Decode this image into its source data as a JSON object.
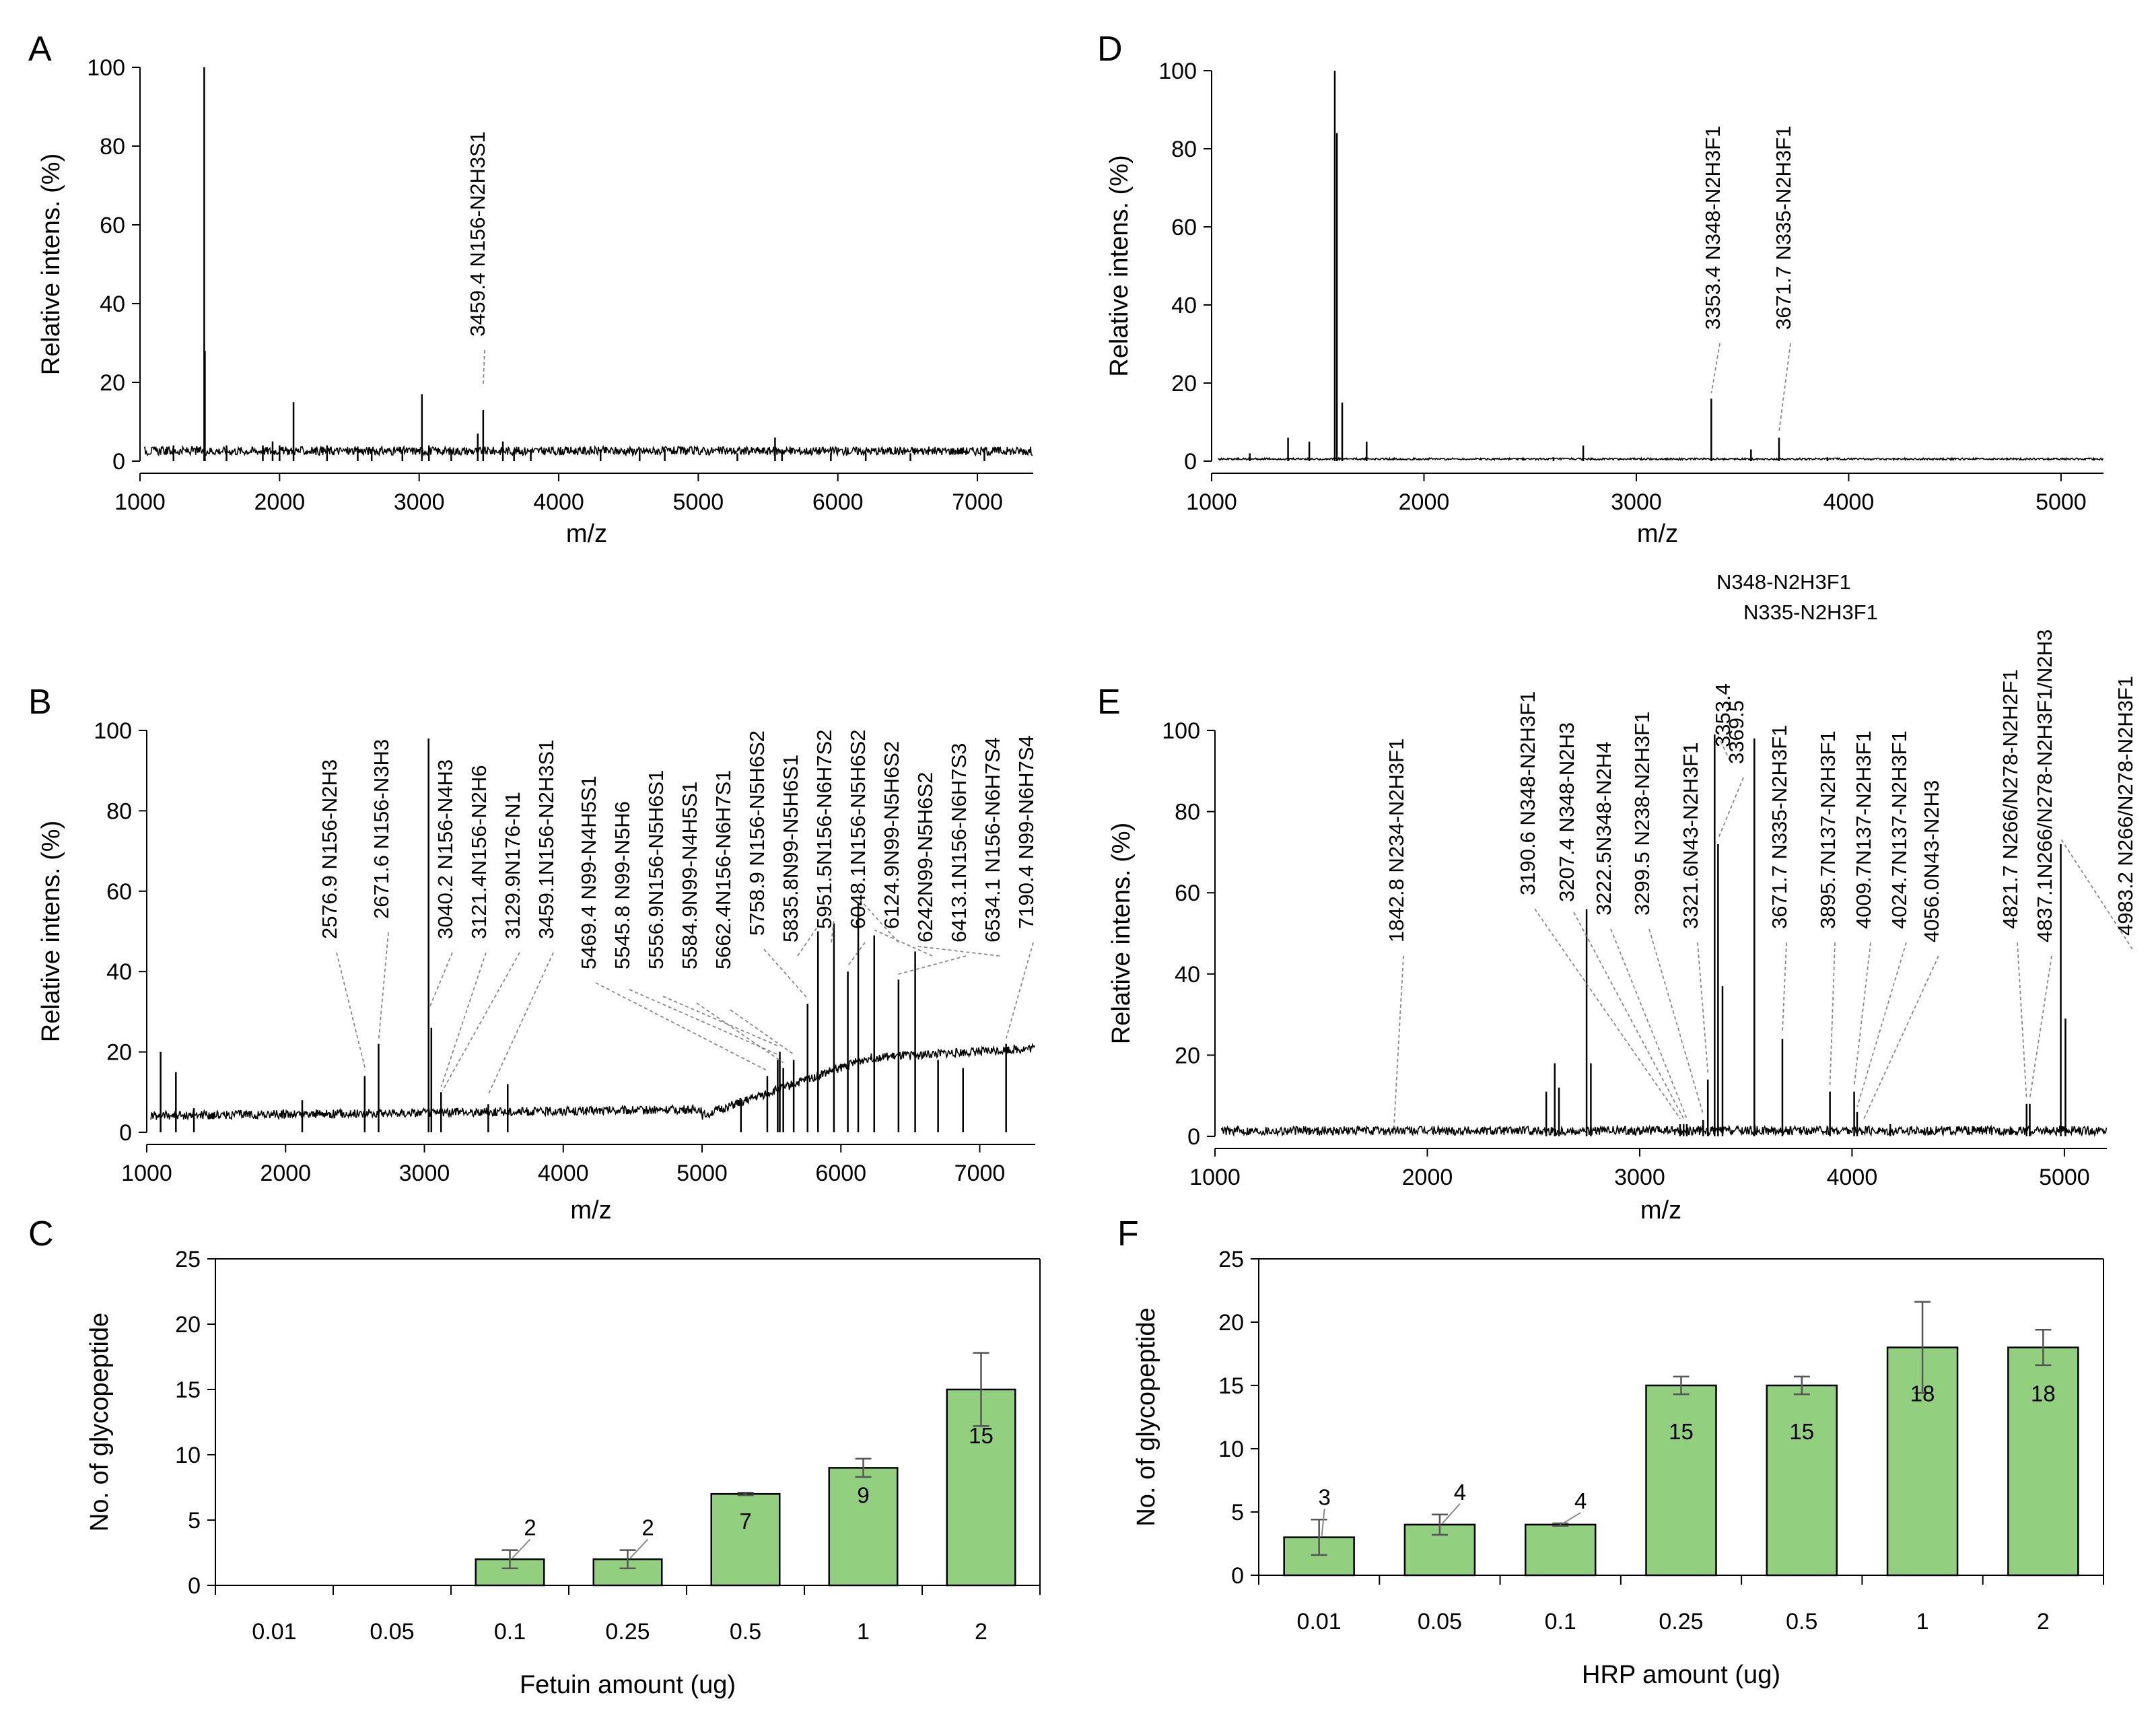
{
  "figure": {
    "panel_labels": [
      "A",
      "B",
      "C",
      "D",
      "E",
      "F"
    ]
  },
  "chart_data": [
    {
      "id": "A",
      "type": "line",
      "xlabel": "m/z",
      "ylabel": "Relative intens. (%)",
      "xlim": [
        1000,
        7400
      ],
      "ylim": [
        0,
        100
      ],
      "xticks": [
        "1000",
        "2000",
        "3000",
        "4000",
        "5000",
        "6000",
        "7000"
      ],
      "yticks": [
        "0",
        "20",
        "40",
        "60",
        "80",
        "100"
      ],
      "peaks": [
        [
          1240,
          4
        ],
        [
          1460,
          100
        ],
        [
          1465,
          28
        ],
        [
          1620,
          4
        ],
        [
          1880,
          4
        ],
        [
          1950,
          5
        ],
        [
          2000,
          4
        ],
        [
          2100,
          15
        ],
        [
          2340,
          4
        ],
        [
          2560,
          3
        ],
        [
          2660,
          3
        ],
        [
          2880,
          3
        ],
        [
          3020,
          17
        ],
        [
          3070,
          4
        ],
        [
          3230,
          3
        ],
        [
          3420,
          7
        ],
        [
          3459,
          13
        ],
        [
          3600,
          5
        ],
        [
          3680,
          3
        ],
        [
          3800,
          3
        ],
        [
          4300,
          3
        ],
        [
          4580,
          3
        ],
        [
          4760,
          3
        ],
        [
          5280,
          2
        ],
        [
          5550,
          6
        ],
        [
          5600,
          3
        ],
        [
          5950,
          2
        ],
        [
          6200,
          2
        ],
        [
          6520,
          2
        ],
        [
          7050,
          2
        ]
      ],
      "annotations": [
        {
          "x": 3459.4,
          "y": 18,
          "label": "3459.4 N156-N2H3S1"
        }
      ]
    },
    {
      "id": "B",
      "type": "line",
      "xlabel": "m/z",
      "ylabel": "Relative intens. (%)",
      "xlim": [
        1000,
        7400
      ],
      "ylim": [
        0,
        100
      ],
      "xticks": [
        "1000",
        "2000",
        "3000",
        "4000",
        "5000",
        "6000",
        "7000"
      ],
      "yticks": [
        "0",
        "20",
        "40",
        "60",
        "80",
        "100"
      ],
      "peaks": [
        [
          1100,
          20
        ],
        [
          1210,
          15
        ],
        [
          1340,
          6
        ],
        [
          2120,
          8
        ],
        [
          2570,
          14
        ],
        [
          2670,
          22
        ],
        [
          3030,
          98
        ],
        [
          3050,
          26
        ],
        [
          3120,
          10
        ],
        [
          3600,
          12
        ],
        [
          3460,
          7
        ],
        [
          5280,
          8
        ],
        [
          5470,
          14
        ],
        [
          5545,
          18
        ],
        [
          5560,
          20
        ],
        [
          5585,
          16
        ],
        [
          5660,
          18
        ],
        [
          5760,
          32
        ],
        [
          5835,
          50
        ],
        [
          5950,
          52
        ],
        [
          6050,
          40
        ],
        [
          6125,
          57
        ],
        [
          6240,
          49
        ],
        [
          6415,
          38
        ],
        [
          6535,
          45
        ],
        [
          6700,
          18
        ],
        [
          6880,
          16
        ],
        [
          7190,
          22
        ]
      ],
      "annotations": [
        {
          "x": 2576.9,
          "y": 14,
          "label": "2576.9 N156-N2H3"
        },
        {
          "x": 2671.6,
          "y": 22,
          "label": "2671.6 N156-N3H3"
        },
        {
          "x": 3040.2,
          "y": 30,
          "label": "3040.2 N156-N4H3"
        },
        {
          "x": 3121.4,
          "y": 10,
          "label": "3121.4N156-N2H6"
        },
        {
          "x": 3129.9,
          "y": 9,
          "label": "3129.9N176-N1"
        },
        {
          "x": 3459.1,
          "y": 8,
          "label": "3459.1N156-N2H3S1"
        },
        {
          "x": 5469.4,
          "y": 14,
          "label": "5469.4 N99-N4H5S1"
        },
        {
          "x": 5545.8,
          "y": 18,
          "label": "5545.8 N99-N5H6"
        },
        {
          "x": 5556.9,
          "y": 20,
          "label": "5556.9N156-N5H6S1"
        },
        {
          "x": 5584.9,
          "y": 16,
          "label": "5584.9N99-N4H5S1"
        },
        {
          "x": 5662.4,
          "y": 18,
          "label": "5662.4N156-N6H7S1"
        },
        {
          "x": 5758.9,
          "y": 32,
          "label": "5758.9 N156-N5H6S2"
        },
        {
          "x": 5835.8,
          "y": 50,
          "label": "5835.8N99-N5H6S1"
        },
        {
          "x": 5951.5,
          "y": 52,
          "label": "5951.5N156-N6H7S2"
        },
        {
          "x": 6048.1,
          "y": 40,
          "label": "6048.1N156-N5H6S2"
        },
        {
          "x": 6124.9,
          "y": 57,
          "label": "6124.9N99-N5H6S2"
        },
        {
          "x": 6242,
          "y": 49,
          "label": "6242N99-N5H6S2"
        },
        {
          "x": 6413.1,
          "y": 38,
          "label": "6413.1N156-N6H7S3"
        },
        {
          "x": 6534.1,
          "y": 45,
          "label": "6534.1 N156-N6H7S4"
        },
        {
          "x": 7190.4,
          "y": 22,
          "label": "7190.4 N99-N6H7S4"
        }
      ]
    },
    {
      "id": "C",
      "type": "bar",
      "title": "",
      "xlabel": "Fetuin amount (ug)",
      "ylabel": "No. of glycopeptide",
      "categories": [
        "0.01",
        "0.05",
        "0.1",
        "0.25",
        "0.5",
        "1",
        "2"
      ],
      "values": [
        0,
        0,
        2,
        2,
        7,
        9,
        15
      ],
      "errors": [
        0,
        0,
        0.7,
        0.7,
        0.1,
        0.7,
        2.8
      ],
      "value_labels": [
        "",
        "",
        "2",
        "2",
        "7",
        "9",
        "15"
      ],
      "ylim": [
        0,
        25
      ],
      "yticks": [
        "0",
        "5",
        "10",
        "15",
        "20",
        "25"
      ],
      "bar_color": "#92d07f"
    },
    {
      "id": "D",
      "type": "line",
      "xlabel": "m/z",
      "ylabel": "Relative intens. (%)",
      "xlim": [
        1000,
        5200
      ],
      "ylim": [
        0,
        100
      ],
      "xticks": [
        "1000",
        "2000",
        "3000",
        "4000",
        "5000"
      ],
      "yticks": [
        "0",
        "20",
        "40",
        "60",
        "80",
        "100"
      ],
      "peaks": [
        [
          1180,
          2
        ],
        [
          1360,
          6
        ],
        [
          1460,
          5
        ],
        [
          1580,
          100
        ],
        [
          1590,
          84
        ],
        [
          1615,
          15
        ],
        [
          1730,
          5
        ],
        [
          2610,
          1
        ],
        [
          2750,
          4
        ],
        [
          3353,
          16
        ],
        [
          3540,
          3
        ],
        [
          3672,
          6
        ],
        [
          3900,
          1
        ]
      ],
      "annotations": [
        {
          "x": 3353.4,
          "y": 16,
          "label": "3353.4 N348-N2H3F1"
        },
        {
          "x": 3671.7,
          "y": 6,
          "label": "3671.7 N335-N2H3F1"
        }
      ]
    },
    {
      "id": "E",
      "type": "line",
      "xlabel": "m/z",
      "ylabel": "Relative intens. (%)",
      "xlim": [
        1000,
        5200
      ],
      "ylim": [
        0,
        100
      ],
      "xticks": [
        "1000",
        "2000",
        "3000",
        "4000",
        "5000"
      ],
      "yticks": [
        "0",
        "20",
        "40",
        "60",
        "80",
        "100"
      ],
      "peaks": [
        [
          2560,
          11
        ],
        [
          2600,
          18
        ],
        [
          2620,
          12
        ],
        [
          2750,
          56
        ],
        [
          2770,
          18
        ],
        [
          3190,
          3
        ],
        [
          3207,
          3
        ],
        [
          3222,
          3
        ],
        [
          3299,
          4
        ],
        [
          3321,
          14
        ],
        [
          3353,
          99
        ],
        [
          3369,
          72
        ],
        [
          3390,
          37
        ],
        [
          3540,
          98
        ],
        [
          3672,
          24
        ],
        [
          3896,
          11
        ],
        [
          4010,
          11
        ],
        [
          4024,
          6
        ],
        [
          4180,
          3
        ],
        [
          4822,
          8
        ],
        [
          4837,
          8
        ],
        [
          4983,
          72
        ],
        [
          5005,
          29
        ]
      ],
      "annotations": [
        {
          "x": 1842.8,
          "y": 1,
          "label": "1842.8 N234-N2H3F1"
        },
        {
          "x": 3190.6,
          "y": 3,
          "label": "3190.6 N348-N2H3F1"
        },
        {
          "x": 3207.4,
          "y": 3,
          "label": "3207.4 N348-N2H3"
        },
        {
          "x": 3222.5,
          "y": 3,
          "label": "3222.5N348-N2H4"
        },
        {
          "x": 3299.5,
          "y": 4,
          "label": "3299.5 N238-N2H3F1"
        },
        {
          "x": 3321.6,
          "y": 14,
          "label": "3321.6N43-N2H3F1"
        },
        {
          "x": 3353.4,
          "y": 99,
          "label": "3353.4",
          "label2": "N348-N2H3F1"
        },
        {
          "x": 3369.5,
          "y": 72,
          "label": "3369.5",
          "label2": "N335-N2H3F1"
        },
        {
          "x": 3671.7,
          "y": 24,
          "label": "3671.7 N335-N2H3F1"
        },
        {
          "x": 3895.7,
          "y": 11,
          "label": "3895.7N137-N2H3F1"
        },
        {
          "x": 4009.7,
          "y": 11,
          "label": "4009.7N137-N2H3F1"
        },
        {
          "x": 4024.7,
          "y": 6,
          "label": "4024.7N137-N2H3F1"
        },
        {
          "x": 4056.0,
          "y": 3,
          "label": "4056.0N43-N2H3"
        },
        {
          "x": 4821.7,
          "y": 8,
          "label": "4821.7 N266/N278-N2H2F1"
        },
        {
          "x": 4837.1,
          "y": 8,
          "label": "4837.1N266/N278-N2H3F1/N2H3"
        },
        {
          "x": 4983.2,
          "y": 72,
          "label": "4983.2  N266/N278-N2H3F1"
        }
      ]
    },
    {
      "id": "F",
      "type": "bar",
      "title": "",
      "xlabel": "HRP amount (ug)",
      "ylabel": "No. of glycopeptide",
      "categories": [
        "0.01",
        "0.05",
        "0.1",
        "0.25",
        "0.5",
        "1",
        "2"
      ],
      "values": [
        3,
        4,
        4,
        15,
        15,
        18,
        18
      ],
      "errors": [
        1.4,
        0.8,
        0.1,
        0.7,
        0.7,
        3.6,
        1.4
      ],
      "value_labels": [
        "3",
        "4",
        "4",
        "15",
        "15",
        "18",
        "18"
      ],
      "ylim": [
        0,
        25
      ],
      "yticks": [
        "0",
        "5",
        "10",
        "15",
        "20",
        "25"
      ],
      "bar_color": "#92d07f"
    }
  ]
}
